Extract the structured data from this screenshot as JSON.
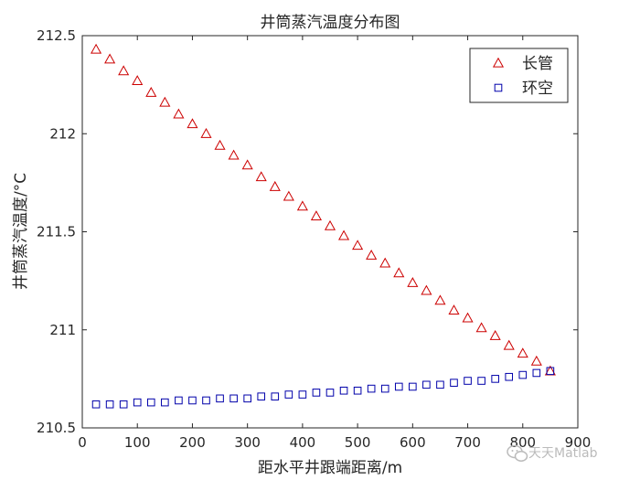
{
  "chart_data": {
    "type": "scatter",
    "title": "井筒蒸汽温度分布图",
    "xlabel": "距水平井跟端距离/m",
    "ylabel": "井筒蒸汽温度/°C",
    "xlim": [
      0,
      900
    ],
    "ylim": [
      210.5,
      212.5
    ],
    "xticks": [
      0,
      100,
      200,
      300,
      400,
      500,
      600,
      700,
      800,
      900
    ],
    "xtick_labels": [
      "0",
      "100",
      "200",
      "300",
      "400",
      "500",
      "600",
      "700",
      "800",
      "900"
    ],
    "yticks": [
      210.5,
      211,
      211.5,
      212,
      212.5
    ],
    "ytick_labels": [
      "210.5",
      "211",
      "211.5",
      "212",
      "212.5"
    ],
    "grid": false,
    "legend_position": "top-right",
    "series": [
      {
        "name": "长管",
        "marker": "triangle",
        "color": "#cc0000",
        "x": [
          25,
          50,
          75,
          100,
          125,
          150,
          175,
          200,
          225,
          250,
          275,
          300,
          325,
          350,
          375,
          400,
          425,
          450,
          475,
          500,
          525,
          550,
          575,
          600,
          625,
          650,
          675,
          700,
          725,
          750,
          775,
          800,
          825,
          850
        ],
        "y": [
          212.43,
          212.38,
          212.32,
          212.27,
          212.21,
          212.16,
          212.1,
          212.05,
          212.0,
          211.94,
          211.89,
          211.84,
          211.78,
          211.73,
          211.68,
          211.63,
          211.58,
          211.53,
          211.48,
          211.43,
          211.38,
          211.34,
          211.29,
          211.24,
          211.2,
          211.15,
          211.1,
          211.06,
          211.01,
          210.97,
          210.92,
          210.88,
          210.84,
          210.79
        ]
      },
      {
        "name": "环空",
        "marker": "square",
        "color": "#0000aa",
        "x": [
          25,
          50,
          75,
          100,
          125,
          150,
          175,
          200,
          225,
          250,
          275,
          300,
          325,
          350,
          375,
          400,
          425,
          450,
          475,
          500,
          525,
          550,
          575,
          600,
          625,
          650,
          675,
          700,
          725,
          750,
          775,
          800,
          825,
          850
        ],
        "y": [
          210.62,
          210.62,
          210.62,
          210.63,
          210.63,
          210.63,
          210.64,
          210.64,
          210.64,
          210.65,
          210.65,
          210.65,
          210.66,
          210.66,
          210.67,
          210.67,
          210.68,
          210.68,
          210.69,
          210.69,
          210.7,
          210.7,
          210.71,
          210.71,
          210.72,
          210.72,
          210.73,
          210.74,
          210.74,
          210.75,
          210.76,
          210.77,
          210.78,
          210.79
        ]
      }
    ]
  },
  "watermark": {
    "text": "天天Matlab",
    "icon": "wechat-icon"
  }
}
